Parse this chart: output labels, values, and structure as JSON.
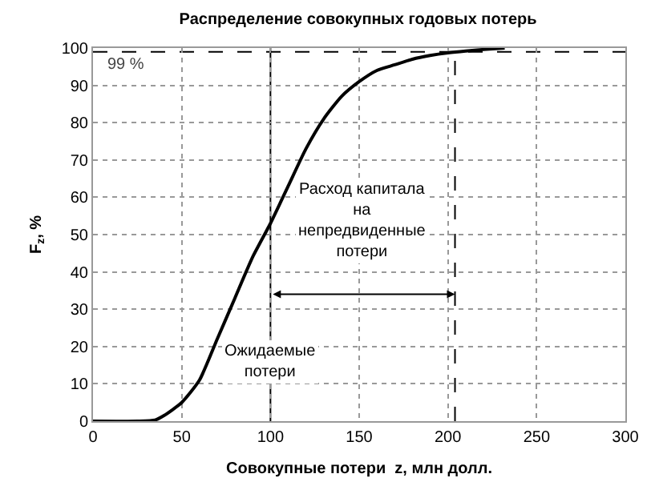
{
  "chart_data": {
    "type": "line",
    "title": "Распределение совокупных годовых потерь",
    "xlabel": "Совокупные потери  z, млн долл.",
    "ylabel": "F$_{z}$, %",
    "x": [
      0,
      25,
      35,
      40,
      50,
      60,
      70,
      80,
      90,
      100,
      110,
      120,
      130,
      140,
      150,
      160,
      170,
      180,
      190,
      200,
      210,
      220,
      232
    ],
    "series": [
      {
        "color": "#000000",
        "values": [
          0,
          0,
          0.3,
          1.5,
          5,
          11,
          22,
          33,
          44,
          53,
          63,
          73,
          81,
          87,
          91,
          94,
          95.5,
          97,
          98,
          98.7,
          99.2,
          99.6,
          100
        ]
      }
    ],
    "xlim": [
      0,
      300
    ],
    "xticks": [
      0,
      50,
      100,
      150,
      200,
      250,
      300
    ],
    "ylim": [
      0,
      100
    ],
    "yticks": [
      0,
      10,
      20,
      30,
      40,
      50,
      60,
      70,
      80,
      90,
      100
    ],
    "grid": true,
    "marker": "none",
    "line_style": "solid",
    "ref_lines": [
      {
        "axis": "y",
        "value": 99,
        "label": "99 %",
        "line_style": "dashed"
      },
      {
        "axis": "x",
        "value": 100,
        "line_style": "solid",
        "label": "Ожидаемые потери"
      },
      {
        "axis": "x",
        "value": 204,
        "line_style": "dashed"
      }
    ],
    "annotations": [
      "Расход капитала на непредвиденные потери"
    ]
  }
}
